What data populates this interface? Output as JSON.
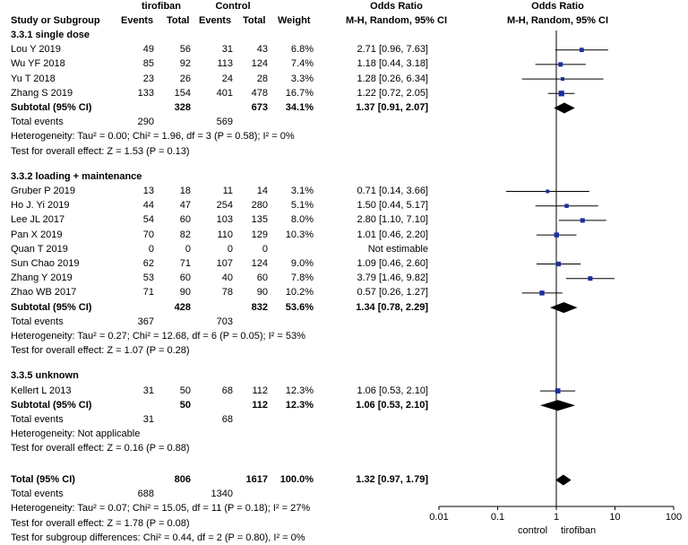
{
  "header": {
    "group1": "tirofiban",
    "group2": "Control",
    "study_col": "Study or Subgroup",
    "events1": "Events",
    "total1": "Total",
    "events2": "Events",
    "total2": "Total",
    "weight": "Weight",
    "or_title": "Odds Ratio",
    "or_method": "M-H, Random, 95% CI",
    "plot_title": "Odds Ratio",
    "plot_method": "M-H, Random, 95% CI"
  },
  "subgroups": [
    {
      "title": "3.3.1 single dose",
      "studies": [
        {
          "name": "Lou Y 2019",
          "e1": "49",
          "t1": "56",
          "e2": "31",
          "t2": "43",
          "weight": "6.8%",
          "ci": "2.71 [0.96, 7.63]"
        },
        {
          "name": "Wu YF 2018",
          "e1": "85",
          "t1": "92",
          "e2": "113",
          "t2": "124",
          "weight": "7.4%",
          "ci": "1.18 [0.44, 3.18]"
        },
        {
          "name": "Yu T 2018",
          "e1": "23",
          "t1": "26",
          "e2": "24",
          "t2": "28",
          "weight": "3.3%",
          "ci": "1.28 [0.26, 6.34]"
        },
        {
          "name": "Zhang S 2019",
          "e1": "133",
          "t1": "154",
          "e2": "401",
          "t2": "478",
          "weight": "16.7%",
          "ci": "1.22 [0.72, 2.05]"
        }
      ],
      "subtotal": {
        "label": "Subtotal (95% CI)",
        "t1": "328",
        "t2": "673",
        "weight": "34.1%",
        "ci": "1.37 [0.91, 2.07]"
      },
      "events": {
        "label": "Total events",
        "e1": "290",
        "e2": "569"
      },
      "heterogeneity": "Heterogeneity: Tau² = 0.00; Chi² = 1.96, df = 3 (P = 0.58); I² = 0%",
      "overall": "Test for overall effect: Z = 1.53 (P = 0.13)"
    },
    {
      "title": "3.3.2 loading + maintenance",
      "studies": [
        {
          "name": "Gruber P 2019",
          "e1": "13",
          "t1": "18",
          "e2": "11",
          "t2": "14",
          "weight": "3.1%",
          "ci": "0.71 [0.14, 3.66]"
        },
        {
          "name": "Ho J. Yi 2019",
          "e1": "44",
          "t1": "47",
          "e2": "254",
          "t2": "280",
          "weight": "5.1%",
          "ci": "1.50 [0.44, 5.17]"
        },
        {
          "name": "Lee JL 2017",
          "e1": "54",
          "t1": "60",
          "e2": "103",
          "t2": "135",
          "weight": "8.0%",
          "ci": "2.80 [1.10, 7.10]"
        },
        {
          "name": "Pan X 2019",
          "e1": "70",
          "t1": "82",
          "e2": "110",
          "t2": "129",
          "weight": "10.3%",
          "ci": "1.01 [0.46, 2.20]"
        },
        {
          "name": "Quan T 2019",
          "e1": "0",
          "t1": "0",
          "e2": "0",
          "t2": "0",
          "weight": "",
          "ci": "Not estimable"
        },
        {
          "name": "Sun Chao 2019",
          "e1": "62",
          "t1": "71",
          "e2": "107",
          "t2": "124",
          "weight": "9.0%",
          "ci": "1.09 [0.46, 2.60]"
        },
        {
          "name": "Zhang Y 2019",
          "e1": "53",
          "t1": "60",
          "e2": "40",
          "t2": "60",
          "weight": "7.8%",
          "ci": "3.79 [1.46, 9.82]"
        },
        {
          "name": "Zhao WB 2017",
          "e1": "71",
          "t1": "90",
          "e2": "78",
          "t2": "90",
          "weight": "10.2%",
          "ci": "0.57 [0.26, 1.27]"
        }
      ],
      "subtotal": {
        "label": "Subtotal (95% CI)",
        "t1": "428",
        "t2": "832",
        "weight": "53.6%",
        "ci": "1.34 [0.78, 2.29]"
      },
      "events": {
        "label": "Total events",
        "e1": "367",
        "e2": "703"
      },
      "heterogeneity": "Heterogeneity: Tau² = 0.27; Chi² = 12.68, df = 6 (P = 0.05); I² = 53%",
      "overall": "Test for overall effect: Z = 1.07 (P = 0.28)"
    },
    {
      "title": "3.3.5 unknown",
      "studies": [
        {
          "name": "Kellert L 2013",
          "e1": "31",
          "t1": "50",
          "e2": "68",
          "t2": "112",
          "weight": "12.3%",
          "ci": "1.06 [0.53, 2.10]"
        }
      ],
      "subtotal": {
        "label": "Subtotal (95% CI)",
        "t1": "50",
        "t2": "112",
        "weight": "12.3%",
        "ci": "1.06 [0.53, 2.10]"
      },
      "events": {
        "label": "Total events",
        "e1": "31",
        "e2": "68"
      },
      "heterogeneity": "Heterogeneity: Not applicable",
      "overall": "Test for overall effect: Z = 0.16 (P = 0.88)"
    }
  ],
  "total": {
    "label": "Total (95% CI)",
    "t1": "806",
    "t2": "1617",
    "weight": "100.0%",
    "ci": "1.32 [0.97, 1.79]"
  },
  "total_events": {
    "label": "Total events",
    "e1": "688",
    "e2": "1340"
  },
  "total_heterogeneity": "Heterogeneity: Tau² = 0.07; Chi² = 15.05, df = 11 (P = 0.18); I² = 27%",
  "total_overall": "Test for overall effect: Z = 1.78 (P = 0.08)",
  "subgroup_diff": "Test for subgroup differences: Chi² = 0.44, df = 2 (P = 0.80), I² = 0%",
  "axis": {
    "ticks": [
      "0.01",
      "0.1",
      "1",
      "10",
      "100"
    ],
    "tick_values": [
      0.01,
      0.1,
      1,
      10,
      100
    ],
    "favours_left": "control",
    "favours_right": "tirofiban"
  },
  "chart_data": {
    "type": "forest",
    "scale": "log",
    "xlim": [
      0.01,
      100
    ],
    "reference": 1,
    "studies": [
      {
        "name": "Lou Y 2019",
        "or": 2.71,
        "lo": 0.96,
        "hi": 7.63,
        "weight": 6.8
      },
      {
        "name": "Wu YF 2018",
        "or": 1.18,
        "lo": 0.44,
        "hi": 3.18,
        "weight": 7.4
      },
      {
        "name": "Yu T 2018",
        "or": 1.28,
        "lo": 0.26,
        "hi": 6.34,
        "weight": 3.3
      },
      {
        "name": "Zhang S 2019",
        "or": 1.22,
        "lo": 0.72,
        "hi": 2.05,
        "weight": 16.7
      },
      {
        "name": "Gruber P 2019",
        "or": 0.71,
        "lo": 0.14,
        "hi": 3.66,
        "weight": 3.1
      },
      {
        "name": "Ho J. Yi 2019",
        "or": 1.5,
        "lo": 0.44,
        "hi": 5.17,
        "weight": 5.1
      },
      {
        "name": "Lee JL 2017",
        "or": 2.8,
        "lo": 1.1,
        "hi": 7.1,
        "weight": 8.0
      },
      {
        "name": "Pan X 2019",
        "or": 1.01,
        "lo": 0.46,
        "hi": 2.2,
        "weight": 10.3
      },
      {
        "name": "Quan T 2019",
        "or": null,
        "lo": null,
        "hi": null,
        "weight": null
      },
      {
        "name": "Sun Chao 2019",
        "or": 1.09,
        "lo": 0.46,
        "hi": 2.6,
        "weight": 9.0
      },
      {
        "name": "Zhang Y 2019",
        "or": 3.79,
        "lo": 1.46,
        "hi": 9.82,
        "weight": 7.8
      },
      {
        "name": "Zhao WB 2017",
        "or": 0.57,
        "lo": 0.26,
        "hi": 1.27,
        "weight": 10.2
      },
      {
        "name": "Kellert L 2013",
        "or": 1.06,
        "lo": 0.53,
        "hi": 2.1,
        "weight": 12.3
      }
    ],
    "diamonds": [
      {
        "name": "Subtotal 3.3.1",
        "or": 1.37,
        "lo": 0.91,
        "hi": 2.07
      },
      {
        "name": "Subtotal 3.3.2",
        "or": 1.34,
        "lo": 0.78,
        "hi": 2.29
      },
      {
        "name": "Subtotal 3.3.5",
        "or": 1.06,
        "lo": 0.53,
        "hi": 2.1
      },
      {
        "name": "Total",
        "or": 1.32,
        "lo": 0.97,
        "hi": 1.79
      }
    ]
  }
}
